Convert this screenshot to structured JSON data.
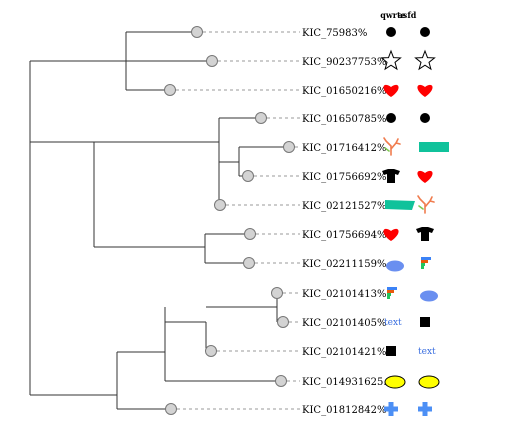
{
  "columns": [
    {
      "header": "qwrte"
    },
    {
      "header": "asfd"
    }
  ],
  "colors": {
    "circle": "#000000",
    "heart": "#ff0000",
    "rect_teal": "#10c29b",
    "ellipse_blue": "#6a8ff0",
    "ellipse_yellow": "#ffff00",
    "cross_blue": "#4c8ff5",
    "text_blue": "#3b6fe0",
    "node_fill": "#d3d3d3",
    "branch": "#333333"
  },
  "leaves": [
    {
      "label": "KIC_75983%",
      "marks": [
        {
          "icon": "circle-icon"
        },
        {
          "icon": "circle-icon"
        }
      ]
    },
    {
      "label": "KIC_90237753%",
      "marks": [
        {
          "icon": "star-outline-icon"
        },
        {
          "icon": "star-outline-icon"
        }
      ]
    },
    {
      "label": "KIC_01650216%",
      "marks": [
        {
          "icon": "heart-icon"
        },
        {
          "icon": "heart-icon"
        }
      ]
    },
    {
      "label": "KIC_01650785%",
      "marks": [
        {
          "icon": "circle-icon"
        },
        {
          "icon": "circle-icon"
        }
      ]
    },
    {
      "label": "KIC_01716412%",
      "marks": [
        {
          "icon": "coral-icon"
        },
        {
          "icon": "teal-rectangle-icon"
        }
      ]
    },
    {
      "label": "KIC_01756692%",
      "marks": [
        {
          "icon": "tshirt-icon"
        },
        {
          "icon": "heart-icon"
        }
      ]
    },
    {
      "label": "KIC_02121527%",
      "marks": [
        {
          "icon": "teal-parallelogram-icon"
        },
        {
          "icon": "coral-icon"
        }
      ]
    },
    {
      "label": "KIC_01756694%",
      "marks": [
        {
          "icon": "heart-icon"
        },
        {
          "icon": "tshirt-icon"
        }
      ]
    },
    {
      "label": "KIC_02211159%",
      "marks": [
        {
          "icon": "blue-ellipse-icon"
        },
        {
          "icon": "mini-barchart-icon"
        }
      ]
    },
    {
      "label": "KIC_02101413%",
      "marks": [
        {
          "icon": "mini-barchart-icon"
        },
        {
          "icon": "blue-ellipse-icon"
        }
      ]
    },
    {
      "label": "KIC_02101405%",
      "marks": [
        {
          "icon": "text-icon",
          "text": "text"
        },
        {
          "icon": "square-icon"
        }
      ]
    },
    {
      "label": "KIC_02101421%",
      "marks": [
        {
          "icon": "square-icon"
        },
        {
          "icon": "text-icon",
          "text": "text"
        }
      ]
    },
    {
      "label": "KIC_014931625.2",
      "marks": [
        {
          "icon": "yellow-ellipse-icon"
        },
        {
          "icon": "yellow-ellipse-icon"
        }
      ]
    },
    {
      "label": "KIC_01812842%",
      "marks": [
        {
          "icon": "blue-cross-icon"
        },
        {
          "icon": "blue-cross-icon"
        }
      ]
    }
  ]
}
